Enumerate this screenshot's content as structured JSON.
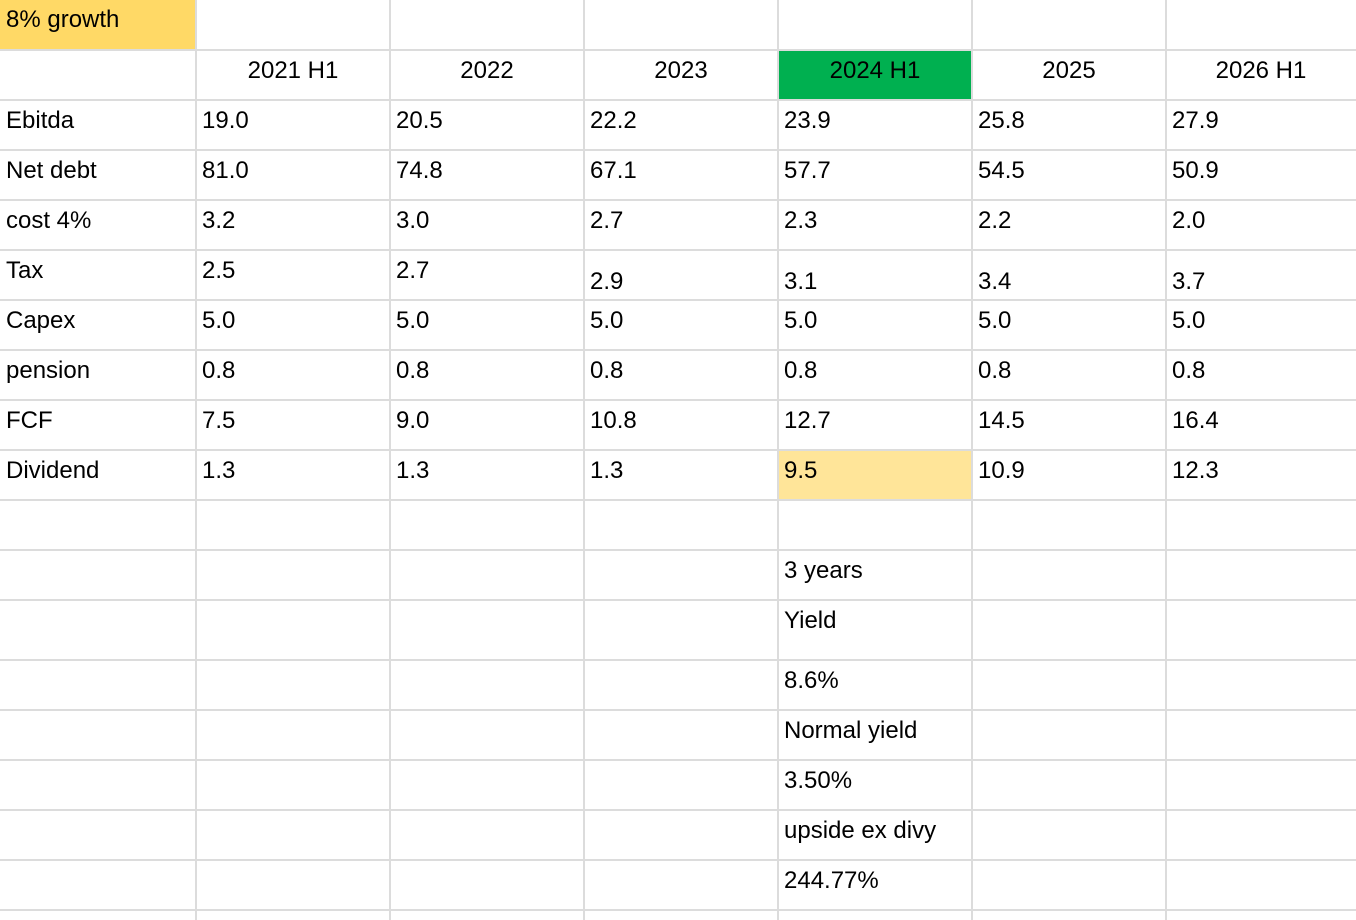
{
  "title_cell": "8% growth",
  "colors": {
    "title_fill": "#ffd966",
    "highlight_header_fill": "#00b050",
    "highlight_value_fill": "#ffe599",
    "gridline": "#dcdcdc"
  },
  "headers": [
    "",
    "2021 H1",
    "2022",
    "2023",
    "2024 H1",
    "2025",
    "2026 H1"
  ],
  "highlighted_header": "2024 H1",
  "rows": [
    {
      "label": "Ebitda",
      "values": [
        "19.0",
        "20.5",
        "22.2",
        "23.9",
        "25.8",
        "27.9"
      ]
    },
    {
      "label": "Net debt",
      "values": [
        "81.0",
        "74.8",
        "67.1",
        "57.7",
        "54.5",
        "50.9"
      ]
    },
    {
      "label": "cost 4%",
      "values": [
        "3.2",
        "3.0",
        "2.7",
        "2.3",
        "2.2",
        "2.0"
      ]
    },
    {
      "label": "Tax",
      "values": [
        "2.5",
        "2.7",
        "2.9",
        "3.1",
        "3.4",
        "3.7"
      ]
    },
    {
      "label": "Capex",
      "values": [
        "5.0",
        "5.0",
        "5.0",
        "5.0",
        "5.0",
        "5.0"
      ]
    },
    {
      "label": "pension",
      "values": [
        "0.8",
        "0.8",
        "0.8",
        "0.8",
        "0.8",
        "0.8"
      ]
    },
    {
      "label": "FCF",
      "values": [
        "7.5",
        "9.0",
        "10.8",
        "12.7",
        "14.5",
        "16.4"
      ]
    },
    {
      "label": "Dividend",
      "values": [
        "1.3",
        "1.3",
        "1.3",
        "9.5",
        "10.9",
        "12.3"
      ]
    }
  ],
  "highlighted_value": {
    "row": "Dividend",
    "column": "2024 H1",
    "value": "9.5"
  },
  "notes": [
    "3 years",
    "Yield",
    "8.6%",
    "Normal yield",
    "3.50%",
    "upside ex divy",
    "244.77%"
  ]
}
